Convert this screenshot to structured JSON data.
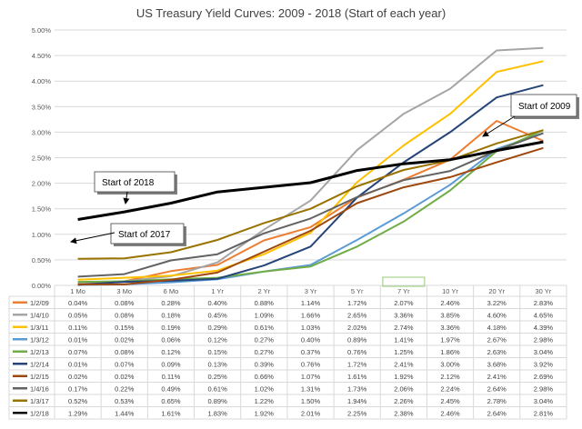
{
  "chart_data": {
    "type": "line",
    "title": "US Treasury Yield Curves: 2009 - 2018 (Start of each year)",
    "categories": [
      "1 Mo",
      "3 Mo",
      "6 Mo",
      "1 Yr",
      "2 Yr",
      "3 Yr",
      "5 Yr",
      "7 Yr",
      "10 Yr",
      "20 Yr",
      "30 Yr"
    ],
    "y_ticks": [
      "5.00%",
      "4.50%",
      "4.00%",
      "3.50%",
      "3.00%",
      "2.50%",
      "2.00%",
      "1.50%",
      "1.00%",
      "0.50%",
      "0.00%"
    ],
    "ylim": [
      0,
      5
    ],
    "grid": true,
    "legend": "data table",
    "series": [
      {
        "name": "1/2/09",
        "color": "#ED7D31",
        "values": [
          0.04,
          0.08,
          0.28,
          0.4,
          0.88,
          1.14,
          1.72,
          2.07,
          2.46,
          3.22,
          2.83
        ]
      },
      {
        "name": "1/4/10",
        "color": "#A5A5A5",
        "values": [
          0.05,
          0.08,
          0.18,
          0.45,
          1.09,
          1.66,
          2.65,
          3.36,
          3.85,
          4.6,
          4.65
        ]
      },
      {
        "name": "1/3/11",
        "color": "#FFC000",
        "values": [
          0.11,
          0.15,
          0.19,
          0.29,
          0.61,
          1.03,
          2.02,
          2.74,
          3.36,
          4.18,
          4.39
        ]
      },
      {
        "name": "1/3/12",
        "color": "#5B9BD5",
        "values": [
          0.01,
          0.02,
          0.06,
          0.12,
          0.27,
          0.4,
          0.89,
          1.41,
          1.97,
          2.67,
          2.98
        ]
      },
      {
        "name": "1/2/13",
        "color": "#70AD47",
        "values": [
          0.07,
          0.08,
          0.12,
          0.15,
          0.27,
          0.37,
          0.76,
          1.25,
          1.86,
          2.63,
          3.04
        ]
      },
      {
        "name": "1/2/14",
        "color": "#264478",
        "values": [
          0.01,
          0.07,
          0.09,
          0.13,
          0.39,
          0.76,
          1.72,
          2.41,
          3.0,
          3.68,
          3.92
        ]
      },
      {
        "name": "1/2/15",
        "color": "#9E480E",
        "values": [
          0.02,
          0.02,
          0.11,
          0.25,
          0.66,
          1.07,
          1.61,
          1.92,
          2.12,
          2.41,
          2.69
        ]
      },
      {
        "name": "1/4/16",
        "color": "#636363",
        "values": [
          0.17,
          0.22,
          0.49,
          0.61,
          1.02,
          1.31,
          1.73,
          2.06,
          2.24,
          2.64,
          2.98
        ]
      },
      {
        "name": "1/3/17",
        "color": "#997300",
        "values": [
          0.52,
          0.53,
          0.65,
          0.89,
          1.22,
          1.5,
          1.94,
          2.26,
          2.45,
          2.78,
          3.04
        ]
      },
      {
        "name": "1/2/18",
        "color": "#000000",
        "values": [
          1.29,
          1.44,
          1.61,
          1.83,
          1.92,
          2.01,
          2.25,
          2.38,
          2.46,
          2.64,
          2.81
        ]
      }
    ],
    "annotations": [
      {
        "text": "Start of 2018",
        "points_to": "1/2/18"
      },
      {
        "text": "Start of 2017",
        "points_to": "1/3/17"
      },
      {
        "text": "Start of 2009",
        "points_to": "1/2/09"
      }
    ]
  }
}
